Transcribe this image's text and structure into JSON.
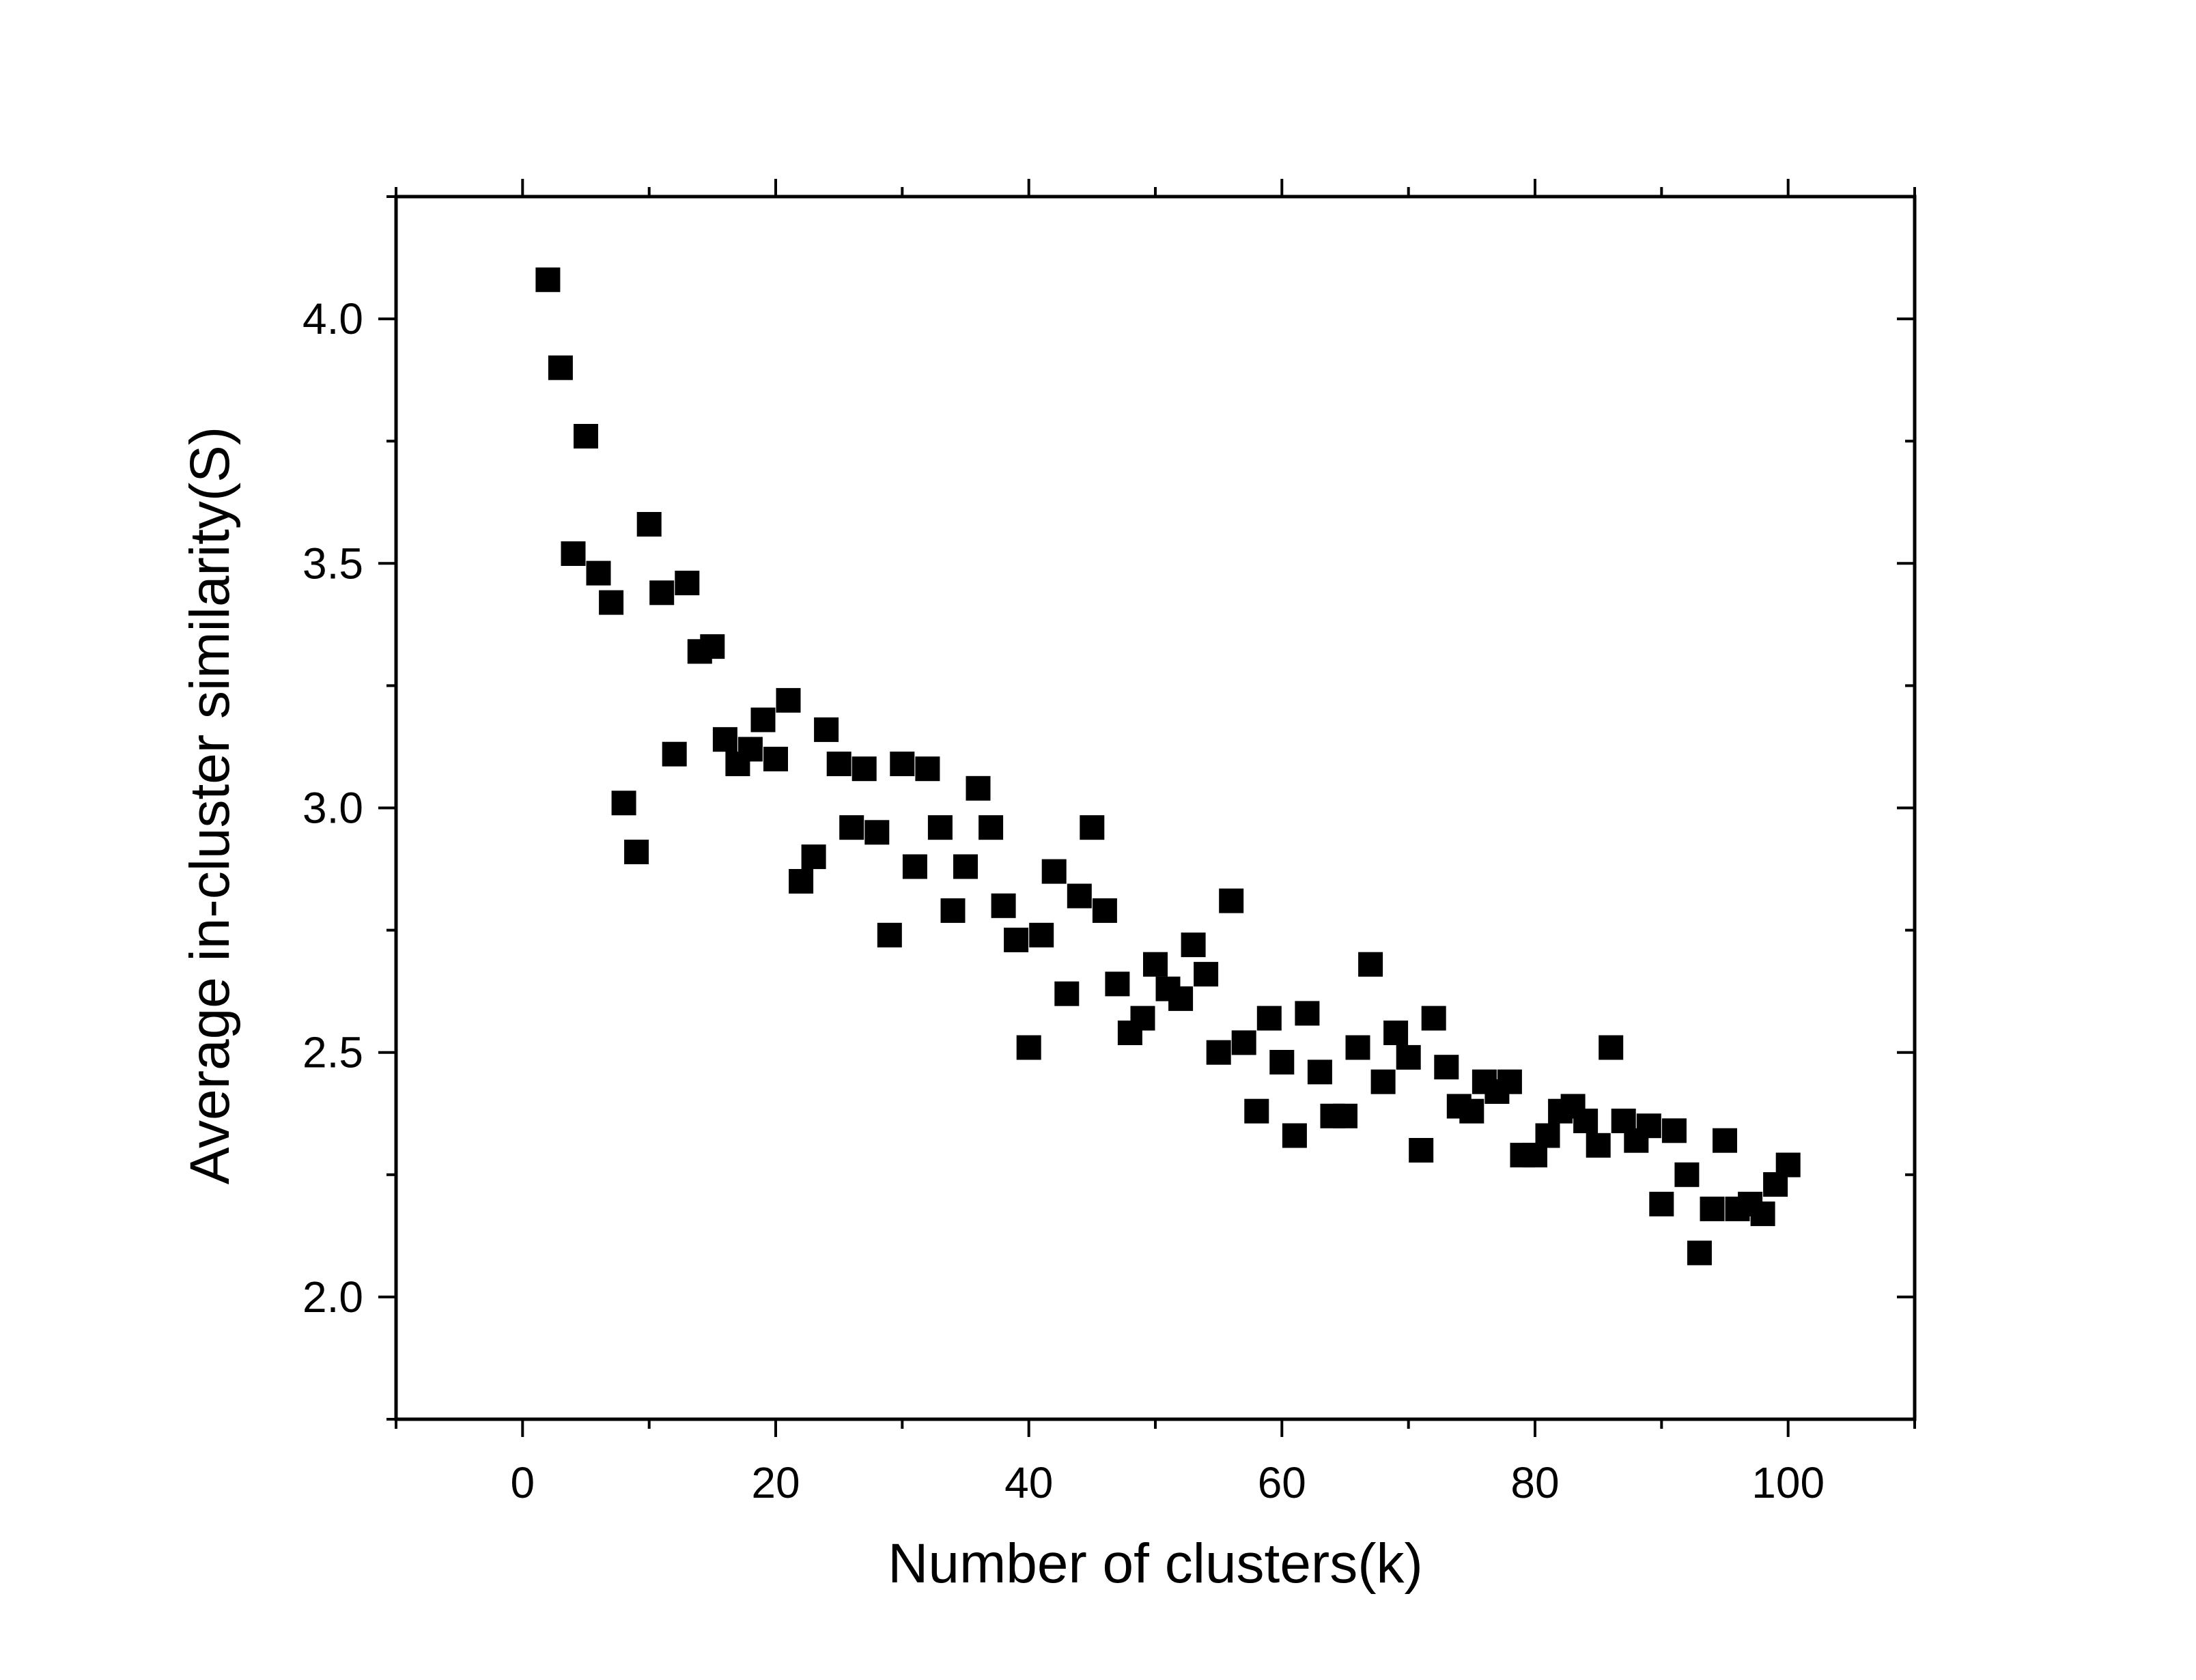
{
  "chart_data": {
    "type": "scatter",
    "title": "",
    "xlabel": "Number of clusters(k)",
    "ylabel": "Average in-cluster similarity(S)",
    "xlim": [
      -10,
      110
    ],
    "ylim": [
      1.75,
      4.25
    ],
    "x_ticks": [
      0,
      20,
      40,
      60,
      80,
      100
    ],
    "x_tick_labels": [
      "0",
      "20",
      "40",
      "60",
      "80",
      "100"
    ],
    "y_ticks": [
      2.0,
      2.5,
      3.0,
      3.5,
      4.0
    ],
    "y_tick_labels": [
      "2.0",
      "2.5",
      "3.0",
      "3.5",
      "4.0"
    ],
    "grid": false,
    "legend": "none",
    "marker": "square",
    "marker_color": "#000000",
    "series": [
      {
        "points": [
          [
            2,
            4.08
          ],
          [
            3,
            3.9
          ],
          [
            4,
            3.52
          ],
          [
            5,
            3.76
          ],
          [
            6,
            3.48
          ],
          [
            7,
            3.42
          ],
          [
            8,
            3.01
          ],
          [
            9,
            2.91
          ],
          [
            10,
            3.58
          ],
          [
            11,
            3.44
          ],
          [
            12,
            3.11
          ],
          [
            13,
            3.46
          ],
          [
            14,
            3.32
          ],
          [
            15,
            3.33
          ],
          [
            16,
            3.14
          ],
          [
            17,
            3.09
          ],
          [
            18,
            3.12
          ],
          [
            19,
            3.18
          ],
          [
            20,
            3.1
          ],
          [
            21,
            3.22
          ],
          [
            22,
            2.85
          ],
          [
            23,
            2.9
          ],
          [
            24,
            3.16
          ],
          [
            25,
            3.09
          ],
          [
            26,
            2.96
          ],
          [
            27,
            3.08
          ],
          [
            28,
            2.95
          ],
          [
            29,
            2.74
          ],
          [
            30,
            3.09
          ],
          [
            31,
            2.88
          ],
          [
            32,
            3.08
          ],
          [
            33,
            2.96
          ],
          [
            34,
            2.79
          ],
          [
            35,
            2.88
          ],
          [
            36,
            3.04
          ],
          [
            37,
            2.96
          ],
          [
            38,
            2.8
          ],
          [
            39,
            2.73
          ],
          [
            40,
            2.51
          ],
          [
            41,
            2.74
          ],
          [
            42,
            2.87
          ],
          [
            43,
            2.62
          ],
          [
            44,
            2.82
          ],
          [
            45,
            2.96
          ],
          [
            46,
            2.79
          ],
          [
            47,
            2.64
          ],
          [
            48,
            2.54
          ],
          [
            49,
            2.57
          ],
          [
            50,
            2.68
          ],
          [
            51,
            2.63
          ],
          [
            52,
            2.61
          ],
          [
            53,
            2.72
          ],
          [
            54,
            2.66
          ],
          [
            55,
            2.5
          ],
          [
            56,
            2.81
          ],
          [
            57,
            2.52
          ],
          [
            58,
            2.38
          ],
          [
            59,
            2.57
          ],
          [
            60,
            2.48
          ],
          [
            61,
            2.33
          ],
          [
            62,
            2.58
          ],
          [
            63,
            2.46
          ],
          [
            64,
            2.37
          ],
          [
            65,
            2.37
          ],
          [
            66,
            2.51
          ],
          [
            67,
            2.68
          ],
          [
            68,
            2.44
          ],
          [
            69,
            2.54
          ],
          [
            70,
            2.49
          ],
          [
            71,
            2.3
          ],
          [
            72,
            2.57
          ],
          [
            73,
            2.47
          ],
          [
            74,
            2.39
          ],
          [
            75,
            2.38
          ],
          [
            76,
            2.44
          ],
          [
            77,
            2.42
          ],
          [
            78,
            2.44
          ],
          [
            79,
            2.29
          ],
          [
            80,
            2.29
          ],
          [
            81,
            2.33
          ],
          [
            82,
            2.38
          ],
          [
            83,
            2.39
          ],
          [
            84,
            2.36
          ],
          [
            85,
            2.31
          ],
          [
            86,
            2.51
          ],
          [
            87,
            2.36
          ],
          [
            88,
            2.32
          ],
          [
            89,
            2.35
          ],
          [
            90,
            2.19
          ],
          [
            91,
            2.34
          ],
          [
            92,
            2.25
          ],
          [
            93,
            2.09
          ],
          [
            94,
            2.18
          ],
          [
            95,
            2.32
          ],
          [
            96,
            2.18
          ],
          [
            97,
            2.19
          ],
          [
            98,
            2.17
          ],
          [
            99,
            2.23
          ],
          [
            100,
            2.27
          ]
        ]
      }
    ]
  }
}
